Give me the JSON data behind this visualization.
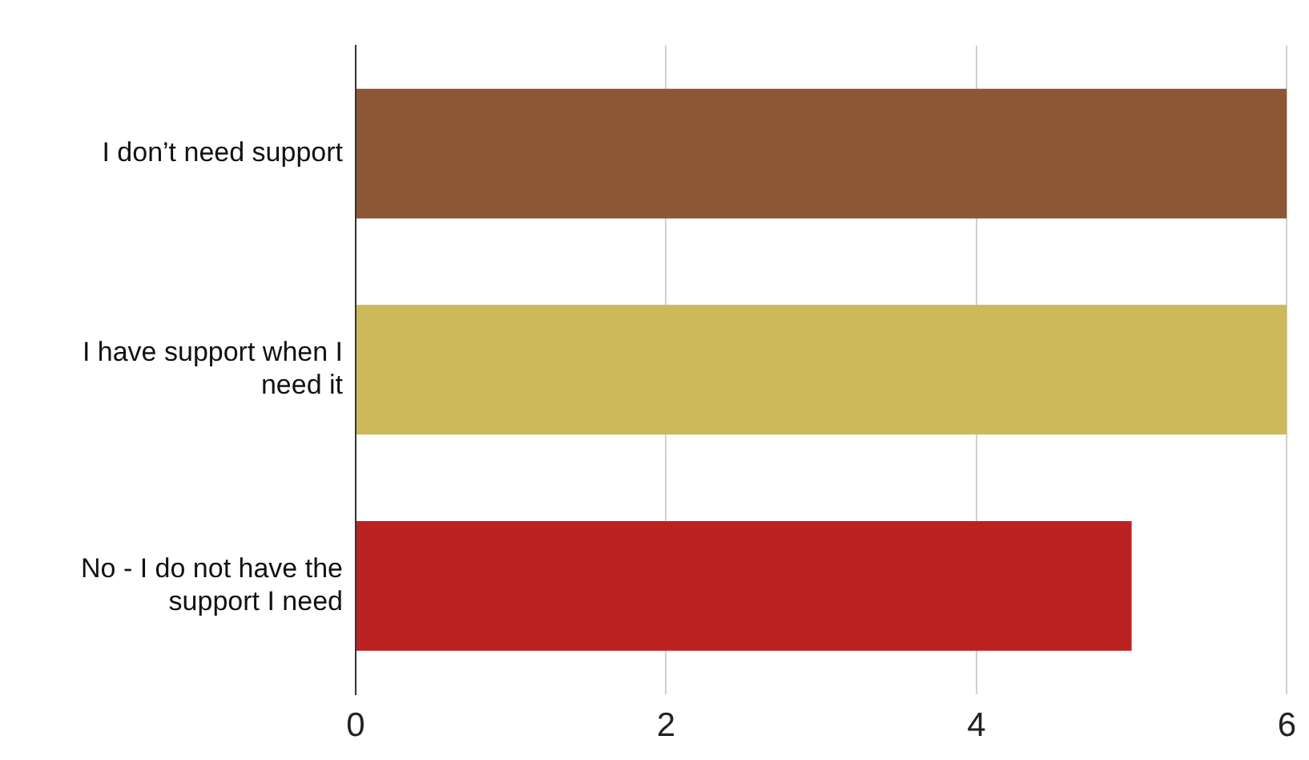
{
  "chart_data": {
    "type": "bar",
    "orientation": "horizontal",
    "categories": [
      "I don’t need support",
      "I have support when I need it",
      "No - I do not have the support I need"
    ],
    "values": [
      6,
      6,
      5
    ],
    "colors": [
      "#8b5734",
      "#cdb85a",
      "#bd2223"
    ],
    "xlim": [
      0,
      6
    ],
    "xticks": [
      0,
      2,
      4,
      6
    ],
    "grid": "x",
    "legend": false
  }
}
